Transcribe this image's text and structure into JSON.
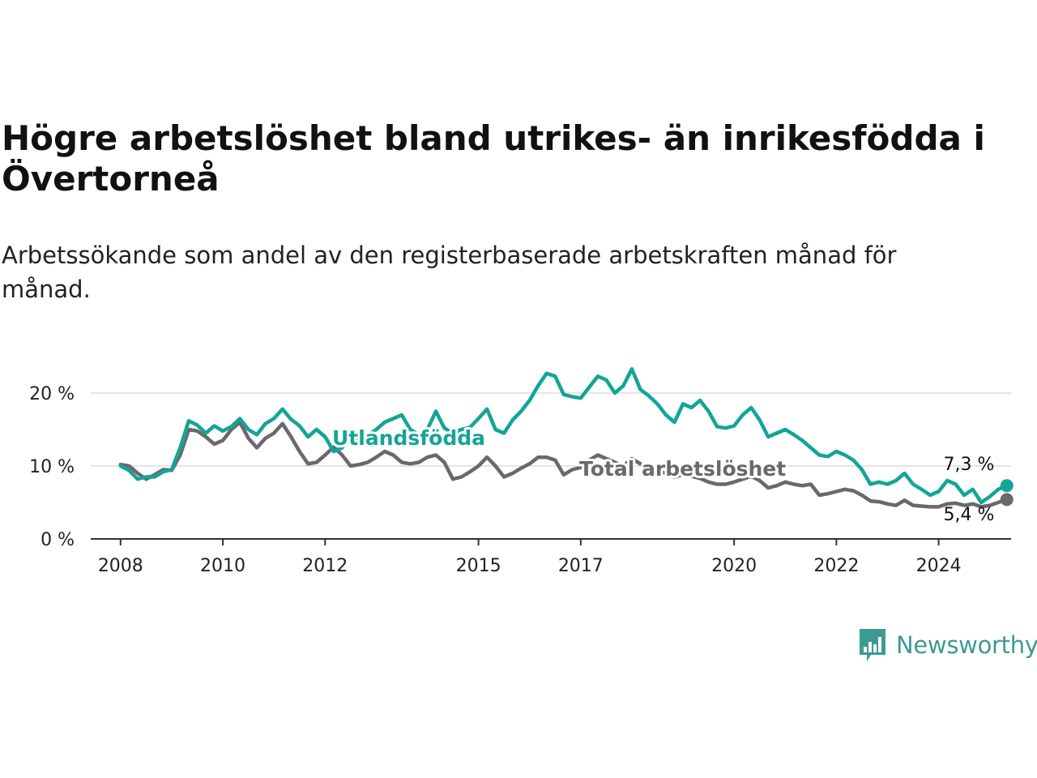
{
  "header": {
    "title": "Högre arbetslöshet bland utrikes- än inrikesfödda i Övertorneå",
    "subtitle": "Arbetssökande som andel av den registerbaserade arbetskraften månad för månad."
  },
  "brand": {
    "name": "Newsworthy",
    "icon": "newsworthy-logo-icon",
    "color": "#3d9a93"
  },
  "chart_data": {
    "type": "line",
    "x_ticks": [
      "2008",
      "2010",
      "2012",
      "2015",
      "2017",
      "2020",
      "2022",
      "2024"
    ],
    "y_ticks": [
      "0 %",
      "10 %",
      "20 %"
    ],
    "ylim": [
      0,
      25
    ],
    "xlim": [
      "2007-06",
      "2025-06"
    ],
    "grid": true,
    "series": [
      {
        "name": "Utlandsfödda",
        "color": "#13a596",
        "end_label": "7,3 %",
        "points": [
          [
            "2008-01",
            10.0
          ],
          [
            "2008-03",
            9.4
          ],
          [
            "2008-05",
            8.2
          ],
          [
            "2008-07",
            8.5
          ],
          [
            "2008-09",
            8.5
          ],
          [
            "2008-11",
            9.2
          ],
          [
            "2009-01",
            9.5
          ],
          [
            "2009-03",
            12.5
          ],
          [
            "2009-05",
            16.2
          ],
          [
            "2009-07",
            15.6
          ],
          [
            "2009-09",
            14.5
          ],
          [
            "2009-11",
            15.5
          ],
          [
            "2010-01",
            14.8
          ],
          [
            "2010-03",
            15.4
          ],
          [
            "2010-05",
            16.5
          ],
          [
            "2010-07",
            15.0
          ],
          [
            "2010-09",
            14.3
          ],
          [
            "2010-11",
            15.8
          ],
          [
            "2011-01",
            16.5
          ],
          [
            "2011-03",
            17.8
          ],
          [
            "2011-05",
            16.4
          ],
          [
            "2011-07",
            15.5
          ],
          [
            "2011-09",
            14.0
          ],
          [
            "2011-11",
            15.0
          ],
          [
            "2012-01",
            14.0
          ],
          [
            "2012-03",
            12.0
          ],
          [
            "2012-05",
            12.5
          ],
          [
            "2012-07",
            14.6
          ],
          [
            "2012-09",
            13.5
          ],
          [
            "2012-11",
            14.2
          ],
          [
            "2013-01",
            15.0
          ],
          [
            "2013-03",
            16.0
          ],
          [
            "2013-05",
            16.5
          ],
          [
            "2013-07",
            17.0
          ],
          [
            "2013-09",
            15.0
          ],
          [
            "2013-11",
            14.3
          ],
          [
            "2014-01",
            15.0
          ],
          [
            "2014-03",
            17.5
          ],
          [
            "2014-05",
            15.2
          ],
          [
            "2014-07",
            14.5
          ],
          [
            "2014-09",
            15.0
          ],
          [
            "2014-11",
            15.3
          ],
          [
            "2015-01",
            16.5
          ],
          [
            "2015-03",
            17.8
          ],
          [
            "2015-05",
            15.0
          ],
          [
            "2015-07",
            14.5
          ],
          [
            "2015-09",
            16.3
          ],
          [
            "2015-11",
            17.5
          ],
          [
            "2016-01",
            19.0
          ],
          [
            "2016-03",
            21.0
          ],
          [
            "2016-05",
            22.7
          ],
          [
            "2016-07",
            22.3
          ],
          [
            "2016-09",
            19.8
          ],
          [
            "2016-11",
            19.5
          ],
          [
            "2017-01",
            19.3
          ],
          [
            "2017-03",
            20.8
          ],
          [
            "2017-05",
            22.3
          ],
          [
            "2017-07",
            21.8
          ],
          [
            "2017-09",
            20.0
          ],
          [
            "2017-11",
            21.0
          ],
          [
            "2018-01",
            23.3
          ],
          [
            "2018-03",
            20.5
          ],
          [
            "2018-05",
            19.6
          ],
          [
            "2018-07",
            18.5
          ],
          [
            "2018-09",
            17.0
          ],
          [
            "2018-11",
            16.0
          ],
          [
            "2019-01",
            18.5
          ],
          [
            "2019-03",
            18.0
          ],
          [
            "2019-05",
            19.0
          ],
          [
            "2019-07",
            17.5
          ],
          [
            "2019-09",
            15.4
          ],
          [
            "2019-11",
            15.2
          ],
          [
            "2020-01",
            15.5
          ],
          [
            "2020-03",
            17.0
          ],
          [
            "2020-05",
            18.0
          ],
          [
            "2020-07",
            16.3
          ],
          [
            "2020-09",
            14.0
          ],
          [
            "2020-11",
            14.5
          ],
          [
            "2021-01",
            15.0
          ],
          [
            "2021-03",
            14.3
          ],
          [
            "2021-05",
            13.5
          ],
          [
            "2021-07",
            12.5
          ],
          [
            "2021-09",
            11.5
          ],
          [
            "2021-11",
            11.3
          ],
          [
            "2022-01",
            12.0
          ],
          [
            "2022-03",
            11.5
          ],
          [
            "2022-05",
            10.8
          ],
          [
            "2022-07",
            9.5
          ],
          [
            "2022-09",
            7.5
          ],
          [
            "2022-11",
            7.8
          ],
          [
            "2023-01",
            7.5
          ],
          [
            "2023-03",
            8.0
          ],
          [
            "2023-05",
            9.0
          ],
          [
            "2023-07",
            7.5
          ],
          [
            "2023-09",
            6.8
          ],
          [
            "2023-11",
            6.0
          ],
          [
            "2024-01",
            6.5
          ],
          [
            "2024-03",
            8.0
          ],
          [
            "2024-05",
            7.5
          ],
          [
            "2024-07",
            6.0
          ],
          [
            "2024-09",
            6.8
          ],
          [
            "2024-11",
            5.0
          ],
          [
            "2025-01",
            5.8
          ],
          [
            "2025-03",
            6.8
          ],
          [
            "2025-05",
            7.3
          ]
        ]
      },
      {
        "name": "Total arbetslöshet",
        "color": "#6b686b",
        "end_label": "5,4 %",
        "points": [
          [
            "2008-01",
            10.2
          ],
          [
            "2008-03",
            10.0
          ],
          [
            "2008-05",
            9.0
          ],
          [
            "2008-07",
            8.2
          ],
          [
            "2008-09",
            8.8
          ],
          [
            "2008-11",
            9.5
          ],
          [
            "2009-01",
            9.4
          ],
          [
            "2009-03",
            11.5
          ],
          [
            "2009-05",
            15.0
          ],
          [
            "2009-07",
            14.8
          ],
          [
            "2009-09",
            14.0
          ],
          [
            "2009-11",
            13.0
          ],
          [
            "2010-01",
            13.5
          ],
          [
            "2010-03",
            15.0
          ],
          [
            "2010-05",
            16.0
          ],
          [
            "2010-07",
            13.8
          ],
          [
            "2010-09",
            12.5
          ],
          [
            "2010-11",
            13.8
          ],
          [
            "2011-01",
            14.5
          ],
          [
            "2011-03",
            15.8
          ],
          [
            "2011-05",
            14.0
          ],
          [
            "2011-07",
            12.0
          ],
          [
            "2011-09",
            10.3
          ],
          [
            "2011-11",
            10.5
          ],
          [
            "2012-01",
            11.5
          ],
          [
            "2012-03",
            12.6
          ],
          [
            "2012-05",
            11.5
          ],
          [
            "2012-07",
            10.0
          ],
          [
            "2012-09",
            10.2
          ],
          [
            "2012-11",
            10.5
          ],
          [
            "2013-01",
            11.2
          ],
          [
            "2013-03",
            12.0
          ],
          [
            "2013-05",
            11.5
          ],
          [
            "2013-07",
            10.5
          ],
          [
            "2013-09",
            10.3
          ],
          [
            "2013-11",
            10.5
          ],
          [
            "2014-01",
            11.2
          ],
          [
            "2014-03",
            11.5
          ],
          [
            "2014-05",
            10.5
          ],
          [
            "2014-07",
            8.2
          ],
          [
            "2014-09",
            8.5
          ],
          [
            "2014-11",
            9.2
          ],
          [
            "2015-01",
            10.0
          ],
          [
            "2015-03",
            11.2
          ],
          [
            "2015-05",
            10.0
          ],
          [
            "2015-07",
            8.5
          ],
          [
            "2015-09",
            9.0
          ],
          [
            "2015-11",
            9.7
          ],
          [
            "2016-01",
            10.3
          ],
          [
            "2016-03",
            11.2
          ],
          [
            "2016-05",
            11.2
          ],
          [
            "2016-07",
            10.8
          ],
          [
            "2016-09",
            8.8
          ],
          [
            "2016-11",
            9.5
          ],
          [
            "2017-01",
            9.8
          ],
          [
            "2017-03",
            10.8
          ],
          [
            "2017-05",
            11.5
          ],
          [
            "2017-07",
            11.0
          ],
          [
            "2017-09",
            10.5
          ],
          [
            "2017-11",
            10.0
          ],
          [
            "2018-01",
            11.0
          ],
          [
            "2018-03",
            10.3
          ],
          [
            "2018-05",
            9.8
          ],
          [
            "2018-07",
            9.3
          ],
          [
            "2018-09",
            9.0
          ],
          [
            "2018-11",
            8.5
          ],
          [
            "2019-01",
            8.8
          ],
          [
            "2019-03",
            8.6
          ],
          [
            "2019-05",
            8.3
          ],
          [
            "2019-07",
            7.8
          ],
          [
            "2019-09",
            7.5
          ],
          [
            "2019-11",
            7.5
          ],
          [
            "2020-01",
            7.8
          ],
          [
            "2020-03",
            8.2
          ],
          [
            "2020-05",
            8.6
          ],
          [
            "2020-07",
            8.0
          ],
          [
            "2020-09",
            7.0
          ],
          [
            "2020-11",
            7.3
          ],
          [
            "2021-01",
            7.8
          ],
          [
            "2021-03",
            7.5
          ],
          [
            "2021-05",
            7.3
          ],
          [
            "2021-07",
            7.5
          ],
          [
            "2021-09",
            6.0
          ],
          [
            "2021-11",
            6.2
          ],
          [
            "2022-01",
            6.5
          ],
          [
            "2022-03",
            6.8
          ],
          [
            "2022-05",
            6.6
          ],
          [
            "2022-07",
            6.0
          ],
          [
            "2022-09",
            5.2
          ],
          [
            "2022-11",
            5.1
          ],
          [
            "2023-01",
            4.8
          ],
          [
            "2023-03",
            4.6
          ],
          [
            "2023-05",
            5.3
          ],
          [
            "2023-07",
            4.6
          ],
          [
            "2023-09",
            4.5
          ],
          [
            "2023-11",
            4.4
          ],
          [
            "2024-01",
            4.4
          ],
          [
            "2024-03",
            4.8
          ],
          [
            "2024-05",
            4.9
          ],
          [
            "2024-07",
            4.6
          ],
          [
            "2024-09",
            4.8
          ],
          [
            "2024-11",
            4.4
          ],
          [
            "2025-01",
            4.6
          ],
          [
            "2025-03",
            5.0
          ],
          [
            "2025-05",
            5.4
          ]
        ]
      }
    ]
  }
}
